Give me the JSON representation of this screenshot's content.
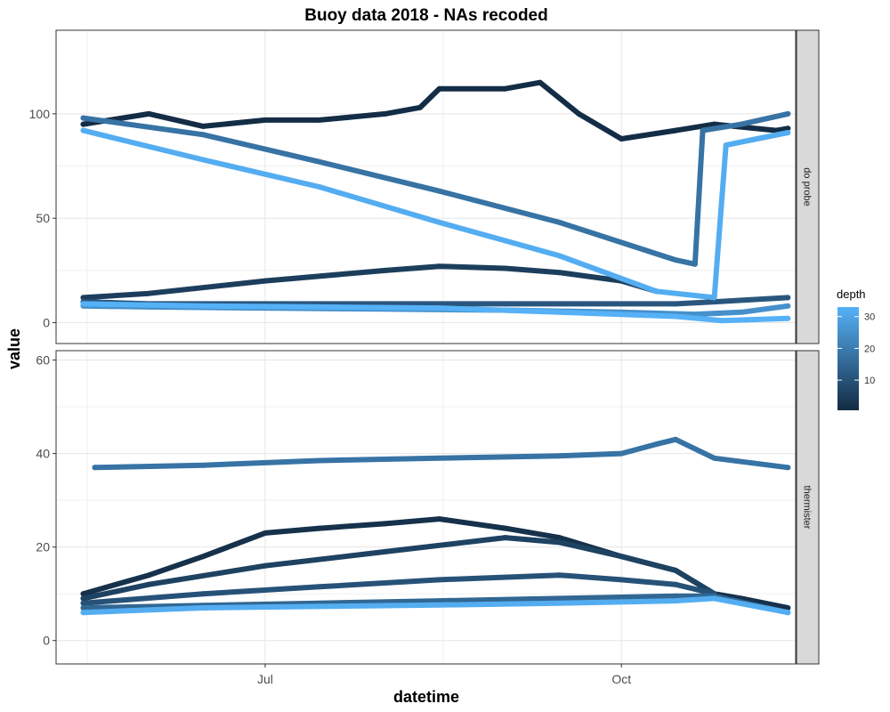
{
  "chart_data": {
    "type": "scatter",
    "title": "Buoy data 2018 - NAs recoded",
    "xlabel": "datetime",
    "ylabel": "value",
    "x_ticks": [
      "Jul",
      "Oct"
    ],
    "x_range": [
      "2018-05-08",
      "2018-11-15"
    ],
    "grid": true,
    "legend": {
      "title": "depth",
      "position": "right",
      "range": [
        0.5,
        33
      ],
      "ticks": [
        10,
        20,
        30
      ],
      "color_low": "#132b43",
      "color_high": "#56b1f7"
    },
    "facets": [
      {
        "name": "do probe",
        "ylim": [
          -10,
          140
        ],
        "yticks": [
          0,
          50,
          100
        ],
        "series": [
          {
            "depth": 1,
            "x": [
              "2018-05-15",
              "2018-06-01",
              "2018-06-15",
              "2018-07-01",
              "2018-07-15",
              "2018-08-01",
              "2018-08-10",
              "2018-08-15",
              "2018-09-01",
              "2018-09-10",
              "2018-09-20",
              "2018-10-01",
              "2018-10-15",
              "2018-10-25",
              "2018-11-10",
              "2018-11-13"
            ],
            "y": [
              95,
              100,
              94,
              97,
              97,
              100,
              103,
              112,
              112,
              115,
              100,
              88,
              92,
              95,
              92,
              93
            ]
          },
          {
            "depth": 5,
            "x": [
              "2018-05-15",
              "2018-06-01",
              "2018-07-01",
              "2018-08-01",
              "2018-08-15",
              "2018-09-01",
              "2018-09-15",
              "2018-10-01",
              "2018-10-10"
            ],
            "y": [
              12,
              14,
              20,
              25,
              27,
              26,
              24,
              20,
              15
            ]
          },
          {
            "depth": 11,
            "x": [
              "2018-05-15",
              "2018-06-01",
              "2018-07-01",
              "2018-08-01",
              "2018-09-01",
              "2018-10-01",
              "2018-10-15",
              "2018-10-25",
              "2018-11-13"
            ],
            "y": [
              10,
              9,
              9,
              9,
              9,
              9,
              9,
              10,
              12
            ]
          },
          {
            "depth": 18,
            "x": [
              "2018-05-15",
              "2018-06-15",
              "2018-07-15",
              "2018-08-15",
              "2018-09-15",
              "2018-10-15",
              "2018-10-20",
              "2018-10-22",
              "2018-11-01",
              "2018-11-13"
            ],
            "y": [
              98,
              90,
              77,
              63,
              48,
              30,
              28,
              92,
              95,
              100
            ]
          },
          {
            "depth": 25,
            "x": [
              "2018-05-15",
              "2018-06-01",
              "2018-07-01",
              "2018-08-01",
              "2018-09-01",
              "2018-10-01",
              "2018-10-20",
              "2018-11-01",
              "2018-11-13"
            ],
            "y": [
              8,
              7.5,
              7,
              6.5,
              6,
              5,
              4,
              5,
              8
            ]
          },
          {
            "depth": 32,
            "x": [
              "2018-05-15",
              "2018-06-15",
              "2018-07-15",
              "2018-08-15",
              "2018-09-15",
              "2018-10-10",
              "2018-10-25",
              "2018-10-28",
              "2018-11-05",
              "2018-11-13"
            ],
            "y": [
              92,
              78,
              65,
              48,
              32,
              15,
              12,
              85,
              88,
              91
            ]
          },
          {
            "depth": 33,
            "x": [
              "2018-05-15",
              "2018-06-15",
              "2018-07-15",
              "2018-08-15",
              "2018-09-15",
              "2018-10-15",
              "2018-10-27",
              "2018-11-13"
            ],
            "y": [
              9,
              8,
              7.5,
              7,
              5,
              3,
              1,
              2
            ]
          }
        ]
      },
      {
        "name": "thermister",
        "ylim": [
          -5,
          62
        ],
        "yticks": [
          0,
          20,
          40,
          60
        ],
        "series": [
          {
            "depth": 18,
            "x": [
              "2018-05-18",
              "2018-06-15",
              "2018-07-15",
              "2018-08-15",
              "2018-09-15",
              "2018-10-01",
              "2018-10-10",
              "2018-10-15",
              "2018-10-25",
              "2018-11-13"
            ],
            "y": [
              37,
              37.5,
              38.5,
              39,
              39.5,
              40,
              42,
              43,
              39,
              37
            ]
          },
          {
            "depth": 2,
            "x": [
              "2018-05-15",
              "2018-06-01",
              "2018-06-15",
              "2018-07-01",
              "2018-07-15",
              "2018-08-01",
              "2018-08-15",
              "2018-09-01",
              "2018-09-15",
              "2018-10-01",
              "2018-10-15",
              "2018-10-25",
              "2018-11-01",
              "2018-11-13"
            ],
            "y": [
              10,
              14,
              18,
              23,
              24,
              25,
              26,
              24,
              22,
              18,
              15,
              10,
              9,
              7
            ]
          },
          {
            "depth": 6,
            "x": [
              "2018-05-15",
              "2018-06-01",
              "2018-07-01",
              "2018-08-01",
              "2018-09-01",
              "2018-09-15",
              "2018-10-01",
              "2018-10-15",
              "2018-10-25"
            ],
            "y": [
              9,
              12,
              16,
              19,
              22,
              21,
              18,
              15,
              10
            ]
          },
          {
            "depth": 10,
            "x": [
              "2018-05-15",
              "2018-06-15",
              "2018-07-15",
              "2018-08-15",
              "2018-09-15",
              "2018-10-01",
              "2018-10-15",
              "2018-10-25"
            ],
            "y": [
              8,
              10,
              11.5,
              13,
              14,
              13,
              12,
              10
            ]
          },
          {
            "depth": 15,
            "x": [
              "2018-05-15",
              "2018-06-15",
              "2018-07-15",
              "2018-08-15",
              "2018-09-15",
              "2018-10-15",
              "2018-10-25",
              "2018-11-13"
            ],
            "y": [
              7,
              7.5,
              8,
              8.5,
              9,
              9.5,
              9.5,
              6
            ]
          },
          {
            "depth": 32,
            "x": [
              "2018-05-15",
              "2018-06-15",
              "2018-07-15",
              "2018-08-15",
              "2018-09-15",
              "2018-10-15",
              "2018-10-25",
              "2018-11-13"
            ],
            "y": [
              6,
              7,
              7.3,
              7.6,
              8,
              8.5,
              9,
              6
            ]
          }
        ]
      }
    ]
  }
}
